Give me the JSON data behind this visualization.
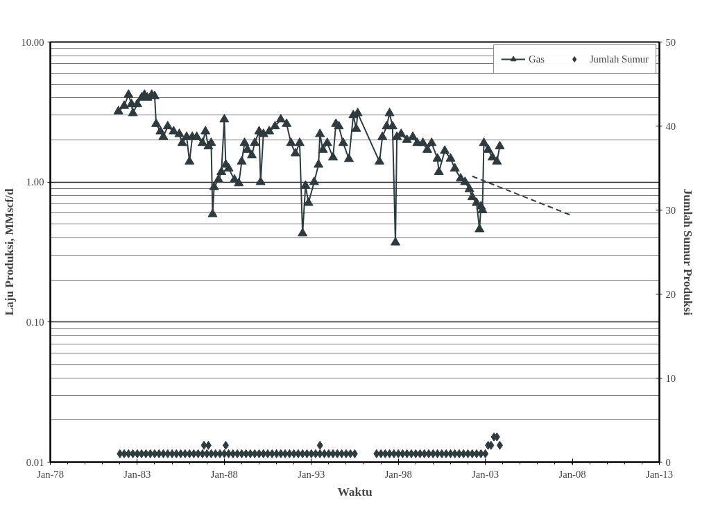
{
  "chart_data": {
    "type": "line",
    "xlabel": "Waktu",
    "ylabel": "Laju Produksi, MMscf/d",
    "y2label": "Jumlah Sumur Produksi",
    "xlim": [
      "1978-01",
      "2013-01"
    ],
    "xticks": [
      {
        "value": "1978-01",
        "label": "Jan-78"
      },
      {
        "value": "1983-01",
        "label": "Jan-83"
      },
      {
        "value": "1988-01",
        "label": "Jan-88"
      },
      {
        "value": "1993-01",
        "label": "Jan-93"
      },
      {
        "value": "1998-01",
        "label": "Jan-98"
      },
      {
        "value": "2003-01",
        "label": "Jan-03"
      },
      {
        "value": "2008-01",
        "label": "Jan-08"
      },
      {
        "value": "2013-01",
        "label": "Jan-13"
      }
    ],
    "log": "y",
    "ylim": [
      0.01,
      10
    ],
    "yticks": [
      {
        "value": 0.01,
        "label": "0.01"
      },
      {
        "value": 0.1,
        "label": "0.10"
      },
      {
        "value": 1,
        "label": "1.00"
      },
      {
        "value": 10,
        "label": "10.00"
      }
    ],
    "y2lim": [
      0,
      50
    ],
    "y2ticks": [
      0,
      10,
      20,
      30,
      40,
      50
    ],
    "grid": "y",
    "legend": "top right",
    "series": [
      {
        "name": "Gas",
        "marker": "triangle",
        "color": "#2f3a3f",
        "x": [
          "1981-12",
          "1982-04",
          "1982-07",
          "1982-09",
          "1982-10",
          "1983-01",
          "1983-04",
          "1983-06",
          "1983-08",
          "1983-11",
          "1984-01",
          "1984-02",
          "1984-05",
          "1984-07",
          "1984-10",
          "1985-02",
          "1985-06",
          "1985-08",
          "1985-11",
          "1986-01",
          "1986-03",
          "1986-06",
          "1986-10",
          "1986-12",
          "1987-02",
          "1987-04",
          "1987-05",
          "1987-06",
          "1987-09",
          "1987-11",
          "1988-01",
          "1988-02",
          "1988-04",
          "1988-08",
          "1988-11",
          "1989-01",
          "1989-03",
          "1989-05",
          "1989-08",
          "1989-10",
          "1990-01",
          "1990-02",
          "1990-04",
          "1990-08",
          "1990-12",
          "1991-04",
          "1991-08",
          "1991-11",
          "1992-02",
          "1992-05",
          "1992-07",
          "1992-09",
          "1992-11",
          "1993-03",
          "1993-06",
          "1993-07",
          "1993-09",
          "1993-12",
          "1994-04",
          "1994-06",
          "1994-08",
          "1994-11",
          "1995-03",
          "1995-06",
          "1995-08",
          "1995-09",
          "1996-12",
          "1997-02",
          "1997-05",
          "1997-07",
          "1997-09",
          "1997-11",
          "1997-12",
          "1998-03",
          "1998-07",
          "1998-11",
          "1999-02",
          "1999-06",
          "1999-09",
          "1999-12",
          "2000-04",
          "2000-05",
          "2000-09",
          "2001-01",
          "2001-04",
          "2001-08",
          "2001-11",
          "2002-02",
          "2002-04",
          "2002-07",
          "2002-09",
          "2002-10",
          "2002-11",
          "2002-12",
          "2003-03",
          "2003-06",
          "2003-09",
          "2003-11"
        ],
        "values": [
          3.2,
          3.5,
          4.2,
          3.6,
          3.1,
          3.6,
          4.0,
          4.2,
          4.0,
          4.2,
          4.1,
          2.6,
          2.3,
          2.1,
          2.5,
          2.3,
          2.2,
          1.9,
          2.1,
          1.4,
          2.1,
          2.1,
          1.9,
          2.3,
          1.8,
          1.9,
          0.59,
          0.92,
          1.04,
          1.18,
          2.8,
          1.33,
          1.25,
          1.04,
          0.98,
          1.4,
          1.9,
          1.7,
          1.55,
          1.9,
          2.3,
          1.0,
          2.2,
          2.3,
          2.5,
          2.8,
          2.6,
          1.9,
          1.6,
          1.9,
          0.43,
          0.94,
          0.71,
          1.0,
          1.33,
          2.2,
          1.7,
          1.9,
          1.5,
          2.6,
          2.5,
          1.9,
          1.46,
          3.0,
          2.4,
          3.1,
          1.4,
          2.1,
          2.5,
          3.1,
          2.5,
          0.37,
          2.1,
          2.2,
          2.0,
          2.1,
          1.9,
          1.9,
          1.7,
          1.9,
          1.47,
          1.18,
          1.67,
          1.47,
          1.25,
          1.06,
          1.0,
          0.89,
          0.78,
          0.71,
          0.46,
          0.67,
          0.63,
          1.9,
          1.7,
          1.5,
          1.4,
          1.8
        ]
      },
      {
        "marker": "none",
        "line_style": "dashed",
        "color": "#2f3a3f",
        "x": [
          "2002-04",
          "2007-12"
        ],
        "values": [
          1.1,
          0.58
        ]
      },
      {
        "name": "Jumlah Sumur",
        "type": "scatter",
        "marker": "diamond",
        "color": "#2f3a3f",
        "axis": "y2",
        "x": [
          "1982-01",
          "1982-04",
          "1982-07",
          "1982-10",
          "1983-01",
          "1983-04",
          "1983-07",
          "1983-10",
          "1984-01",
          "1984-04",
          "1984-07",
          "1984-10",
          "1985-01",
          "1985-04",
          "1985-07",
          "1985-10",
          "1986-01",
          "1986-04",
          "1986-07",
          "1986-10",
          "1987-01",
          "1987-04",
          "1987-07",
          "1987-10",
          "1988-01",
          "1988-04",
          "1988-07",
          "1988-10",
          "1989-01",
          "1989-04",
          "1989-07",
          "1989-10",
          "1990-01",
          "1990-04",
          "1990-07",
          "1990-10",
          "1991-01",
          "1991-04",
          "1991-07",
          "1991-10",
          "1992-01",
          "1992-04",
          "1992-07",
          "1992-10",
          "1993-01",
          "1993-04",
          "1993-07",
          "1993-10",
          "1994-01",
          "1994-04",
          "1994-07",
          "1994-10",
          "1995-01",
          "1995-04",
          "1995-07",
          "1996-10",
          "1997-01",
          "1997-04",
          "1997-07",
          "1997-10",
          "1998-01",
          "1998-04",
          "1998-07",
          "1998-10",
          "1999-01",
          "1999-04",
          "1999-07",
          "1999-10",
          "2000-01",
          "2000-04",
          "2000-07",
          "2000-10",
          "2001-01",
          "2001-04",
          "2001-07",
          "2001-10",
          "2002-01",
          "2002-04",
          "2002-07",
          "2002-10",
          "2003-01",
          "1986-11",
          "1987-02",
          "1988-02",
          "1993-07",
          "2003-03",
          "2003-05",
          "2003-07",
          "2003-09",
          "2003-11"
        ],
        "values": [
          1,
          1,
          1,
          1,
          1,
          1,
          1,
          1,
          1,
          1,
          1,
          1,
          1,
          1,
          1,
          1,
          1,
          1,
          1,
          1,
          1,
          1,
          1,
          1,
          1,
          1,
          1,
          1,
          1,
          1,
          1,
          1,
          1,
          1,
          1,
          1,
          1,
          1,
          1,
          1,
          1,
          1,
          1,
          1,
          1,
          1,
          1,
          1,
          1,
          1,
          1,
          1,
          1,
          1,
          1,
          1,
          1,
          1,
          1,
          1,
          1,
          1,
          1,
          1,
          1,
          1,
          1,
          1,
          1,
          1,
          1,
          1,
          1,
          1,
          1,
          1,
          1,
          1,
          1,
          1,
          1,
          2,
          2,
          2,
          2,
          2,
          2,
          3,
          3,
          2
        ]
      }
    ]
  }
}
